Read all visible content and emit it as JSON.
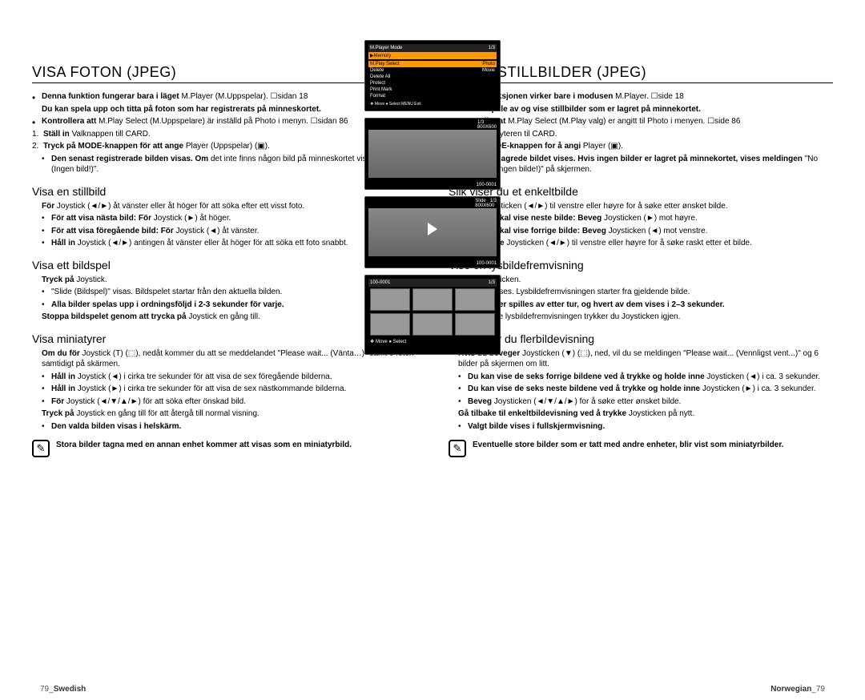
{
  "left": {
    "title": "VISA FOTON (JPEG)",
    "intro": [
      {
        "type": "bullet",
        "b": "Denna funktion fungerar bara i läget",
        "rest": " M.Player (M.Uppspelar). ☐sidan 18"
      },
      {
        "type": "plain",
        "b": "Du kan spela upp och titta på foton som har registrerats på minneskortet.",
        "rest": ""
      },
      {
        "type": "bullet",
        "b": "Kontrollera att",
        "rest": " M.Play Select (M.Uppspelare) är inställd på Photo i menyn. ☐sidan 86"
      },
      {
        "type": "num",
        "n": "1.",
        "b": "Ställ in",
        "rest": " Valknappen till CARD."
      },
      {
        "type": "num",
        "n": "2.",
        "b": "Tryck på MODE-knappen för att ange",
        "rest": " Player (Uppspelar) (▣)."
      },
      {
        "type": "sub",
        "b": "Den senast registrerade bilden visas. Om",
        "rest": " det inte finns någon bild på minneskortet visas \"No image! (Ingen bild!)\"."
      }
    ],
    "s1_title": "Visa en stillbild",
    "s1": [
      {
        "type": "plain",
        "b": "För",
        "rest": " Joystick (◄/►) åt vänster eller åt höger för att söka efter ett visst foto."
      },
      {
        "type": "sub",
        "b": "För att visa nästa bild: För",
        "rest": " Joystick (►) åt höger."
      },
      {
        "type": "sub",
        "b": "För att visa föregående bild: För",
        "rest": " Joystick (◄) åt vänster."
      },
      {
        "type": "sub",
        "b": "Håll in",
        "rest": " Joystick (◄/►) antingen åt vänster eller åt höger för att söka ett foto snabbt."
      }
    ],
    "s2_title": "Visa ett bildspel",
    "s2": [
      {
        "type": "plain",
        "b": "Tryck på",
        "rest": " Joystick."
      },
      {
        "type": "sub",
        "b": "",
        "rest": "\"Slide (Bildspel)\" visas. Bildspelet startar från den aktuella bilden."
      },
      {
        "type": "sub",
        "b": "Alla bilder spelas upp i ordningsföljd i 2-3 sekunder för varje.",
        "rest": ""
      },
      {
        "type": "plain",
        "b": "Stoppa bildspelet genom att trycka på",
        "rest": " Joystick en gång till."
      }
    ],
    "s3_title": "Visa miniatyrer",
    "s3": [
      {
        "type": "plain",
        "b": "Om du för",
        "rest": " Joystick (T) (⬚), nedåt kommer du att se meddelandet \"Please wait... (Vänta…)\" samt 6 foton samtidigt på skärmen."
      },
      {
        "type": "sub",
        "b": "Håll in",
        "rest": " Joystick (◄) i cirka tre sekunder för att visa de sex föregående bilderna."
      },
      {
        "type": "sub",
        "b": "Håll in",
        "rest": " Joystick (►) i cirka tre sekunder för att visa de sex nästkommande bilderna."
      },
      {
        "type": "sub",
        "b": "För",
        "rest": " Joystick (◄/▼/▲/►) för att söka efter önskad bild."
      },
      {
        "type": "plain",
        "b": "Tryck på",
        "rest": " Joystick en gång till för att återgå till normal visning."
      },
      {
        "type": "sub",
        "b": "Den valda bilden visas i helskärm.",
        "rest": ""
      }
    ],
    "note": "Stora bilder tagna med en annan enhet kommer att visas som en miniatyrbild.",
    "footer_num": "79",
    "footer_lang": "Swedish"
  },
  "right": {
    "title": "SE PÅ STILLBILDER (JPEG)",
    "intro": [
      {
        "type": "bullet",
        "b": "Denne funksjonen virker bare i modusen",
        "rest": " M.Player. ☐side 18"
      },
      {
        "type": "plain",
        "b": "Du kan spille av og vise stillbilder som er lagret på minnekortet.",
        "rest": ""
      },
      {
        "type": "bullet",
        "b": "Kontroller at",
        "rest": " M.Play Select (M.Play valg) er angitt til Photo i menyen. ☐side 86"
      },
      {
        "type": "num",
        "n": "1.",
        "b": "Sett",
        "rest": " Valgbryteren til CARD."
      },
      {
        "type": "num",
        "n": "2.",
        "b": "Trykk MODE-knappen for å angi",
        "rest": " Player (▣)."
      },
      {
        "type": "sub",
        "b": "Det sist lagrede bildet vises. Hvis ingen bilder er lagret på minnekortet, vises meldingen",
        "rest": " \"No image! (Ingen bilde!)\" på skjermen."
      }
    ],
    "s1_title": "Slik viser du et enkeltbilde",
    "s1": [
      {
        "type": "plain",
        "b": "Beveg",
        "rest": " Joysticken (◄/►) til venstre eller høyre for å søke etter ønsket bilde."
      },
      {
        "type": "sub",
        "b": "Når du skal vise neste bilde: Beveg",
        "rest": " Joysticken (►) mot høyre."
      },
      {
        "type": "sub",
        "b": "Når du skal vise forrige bilde: Beveg",
        "rest": " Joysticken (◄) mot venstre."
      },
      {
        "type": "sub",
        "b": "Hold inne",
        "rest": " Joysticken (◄/►) til venstre eller høyre for å søke raskt etter et bilde."
      }
    ],
    "s2_title": "Vise en lysbildefremvisning",
    "s2": [
      {
        "type": "plain",
        "b": "Trykk",
        "rest": " Joysticken."
      },
      {
        "type": "sub",
        "b": "",
        "rest": "\"Slide\" vises. Lysbildefremvisningen starter fra gjeldende bilde."
      },
      {
        "type": "sub",
        "b": "Alle bilder spilles av etter tur, og hvert av dem vises i 2–3 sekunder.",
        "rest": ""
      },
      {
        "type": "plain",
        "b": "",
        "rest": "For å stoppe lysbildefremvisningen trykker du Joysticken igjen."
      }
    ],
    "s3_title": "Slik bruker du flerbildevisning",
    "s3": [
      {
        "type": "plain",
        "b": "Hvis du beveger",
        "rest": " Joysticken (▼) (⬚), ned, vil du se meldingen \"Please wait... (Vennligst vent...)\" og 6 bilder på skjermen om litt."
      },
      {
        "type": "sub",
        "b": "Du kan vise de seks forrige bildene ved å trykke og holde inne",
        "rest": " Joysticken (◄) i ca. 3 sekunder."
      },
      {
        "type": "sub",
        "b": "Du kan vise de seks neste bildene ved å trykke og holde inne",
        "rest": " Joysticken (►) i ca. 3 sekunder."
      },
      {
        "type": "sub",
        "b": "Beveg",
        "rest": " Joysticken (◄/▼/▲/►) for å søke etter ønsket bilde."
      },
      {
        "type": "plain",
        "b": "Gå tilbake til enkeltbildevisning ved å trykke",
        "rest": " Joysticken på nytt."
      },
      {
        "type": "sub",
        "b": "Valgt bilde vises i fullskjermvisning.",
        "rest": ""
      }
    ],
    "note": "Eventuelle store bilder som er tatt med andre enheter, blir vist som miniatyrbilder.",
    "footer_lang": "Norwegian",
    "footer_num": "79"
  },
  "screens": {
    "menu": {
      "title": "M.Player Mode",
      "count": "1/3",
      "cat": "▶Memory",
      "items": [
        "M.Play Select",
        "Delete",
        "Delete All",
        "Protect",
        "Print Mark",
        "Format"
      ],
      "sel": "Photo",
      "opt2": "Movie",
      "foot": "❖ Move   ● Select   MENU Exit"
    },
    "img1": {
      "count": "1/3",
      "res": "800X600",
      "file": "100-0001"
    },
    "img2": {
      "label": "Slide",
      "count": "1/3",
      "res": "800X600",
      "file": "100-0001"
    },
    "thumb": {
      "folder": "100-0001",
      "count": "1/3",
      "foot": "❖ Move   ● Select"
    }
  }
}
